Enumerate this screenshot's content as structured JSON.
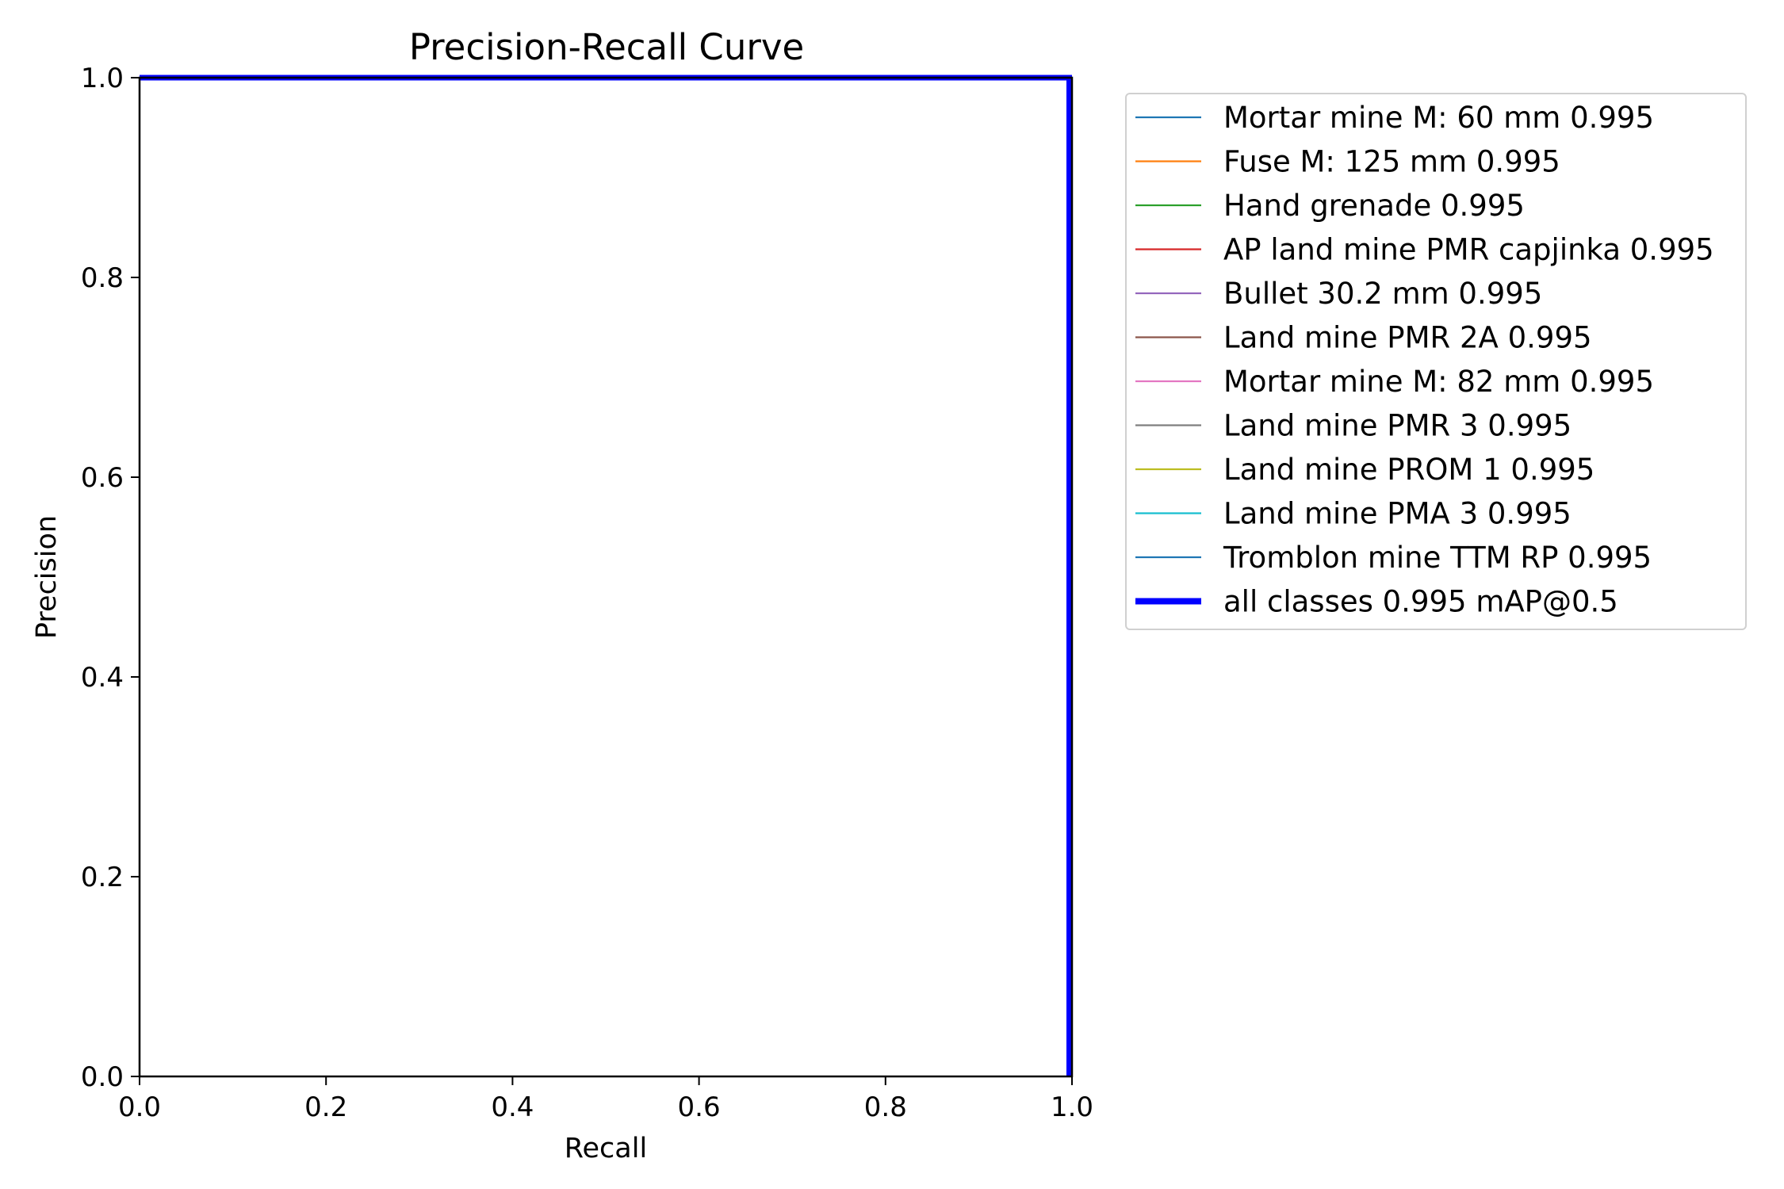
{
  "chart_data": {
    "type": "line",
    "title": "Precision-Recall Curve",
    "xlabel": "Recall",
    "ylabel": "Precision",
    "xlim": [
      0.0,
      1.0
    ],
    "ylim": [
      0.0,
      1.0
    ],
    "xticks": [
      "0.0",
      "0.2",
      "0.4",
      "0.6",
      "0.8",
      "1.0"
    ],
    "yticks": [
      "0.0",
      "0.2",
      "0.4",
      "0.6",
      "0.8",
      "1.0"
    ],
    "grid": false,
    "legend_position": "outside right, top",
    "series": [
      {
        "name": "Mortar mine M: 60 mm 0.995",
        "color": "#1f77b4",
        "emphasis": false,
        "x": [
          0.0,
          1.0,
          1.0
        ],
        "y": [
          1.0,
          1.0,
          0.0
        ]
      },
      {
        "name": "Fuse M: 125 mm 0.995",
        "color": "#ff7f0e",
        "emphasis": false,
        "x": [
          0.0,
          1.0,
          1.0
        ],
        "y": [
          1.0,
          1.0,
          0.0
        ]
      },
      {
        "name": "Hand grenade 0.995",
        "color": "#2ca02c",
        "emphasis": false,
        "x": [
          0.0,
          1.0,
          1.0
        ],
        "y": [
          1.0,
          1.0,
          0.0
        ]
      },
      {
        "name": "AP land mine PMR capjinka 0.995",
        "color": "#d62728",
        "emphasis": false,
        "x": [
          0.0,
          1.0,
          1.0
        ],
        "y": [
          1.0,
          1.0,
          0.0
        ]
      },
      {
        "name": "Bullet 30.2 mm 0.995",
        "color": "#9467bd",
        "emphasis": false,
        "x": [
          0.0,
          1.0,
          1.0
        ],
        "y": [
          1.0,
          1.0,
          0.0
        ]
      },
      {
        "name": "Land mine PMR 2A 0.995",
        "color": "#8c564b",
        "emphasis": false,
        "x": [
          0.0,
          1.0,
          1.0
        ],
        "y": [
          1.0,
          1.0,
          0.0
        ]
      },
      {
        "name": "Mortar mine M: 82 mm 0.995",
        "color": "#e377c2",
        "emphasis": false,
        "x": [
          0.0,
          1.0,
          1.0
        ],
        "y": [
          1.0,
          1.0,
          0.0
        ]
      },
      {
        "name": "Land mine PMR 3 0.995",
        "color": "#7f7f7f",
        "emphasis": false,
        "x": [
          0.0,
          1.0,
          1.0
        ],
        "y": [
          1.0,
          1.0,
          0.0
        ]
      },
      {
        "name": "Land mine PROM 1 0.995",
        "color": "#bcbd22",
        "emphasis": false,
        "x": [
          0.0,
          1.0,
          1.0
        ],
        "y": [
          1.0,
          1.0,
          0.0
        ]
      },
      {
        "name": "Land mine PMA 3 0.995",
        "color": "#17becf",
        "emphasis": false,
        "x": [
          0.0,
          1.0,
          1.0
        ],
        "y": [
          1.0,
          1.0,
          0.0
        ]
      },
      {
        "name": "Tromblon mine TTM RP 0.995",
        "color": "#1f77b4",
        "emphasis": false,
        "x": [
          0.0,
          1.0,
          1.0
        ],
        "y": [
          1.0,
          1.0,
          0.0
        ]
      },
      {
        "name": "all classes 0.995 mAP@0.5",
        "color": "#0000ff",
        "emphasis": true,
        "x": [
          0.0,
          0.997,
          0.997
        ],
        "y": [
          1.0,
          1.0,
          0.0
        ]
      }
    ]
  }
}
